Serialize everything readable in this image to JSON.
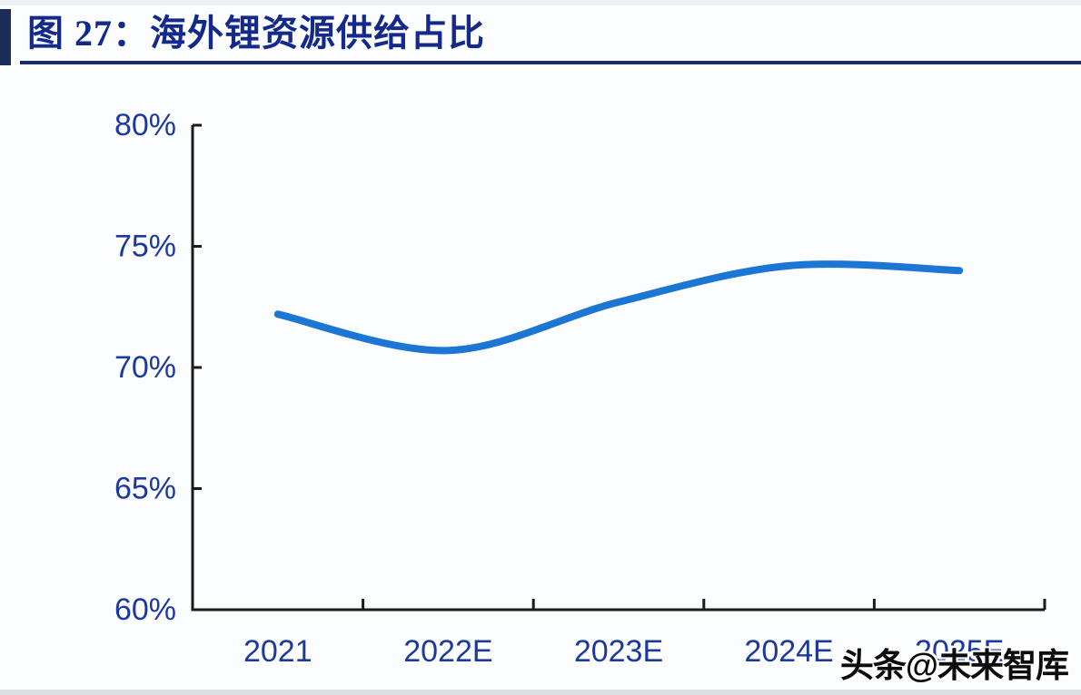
{
  "figure": {
    "title": "图 27：海外锂资源供给占比",
    "title_color": "#13298b",
    "accent_bar_color": "#1c2b57",
    "rule_color": "#17296f"
  },
  "watermark": {
    "text": "头条@未来智库"
  },
  "chart_data": {
    "type": "line",
    "title": "海外锂资源供给占比",
    "categories": [
      "2021",
      "2022E",
      "2023E",
      "2024E",
      "2025E"
    ],
    "series": [
      {
        "name": "海外锂资源供给占比",
        "values": [
          72.2,
          70.7,
          72.7,
          74.2,
          74.0
        ]
      }
    ],
    "xlabel": "",
    "ylabel": "",
    "ylim": [
      60,
      80
    ],
    "yticks": [
      "80%",
      "75%",
      "70%",
      "65%",
      "60%"
    ],
    "ytick_values": [
      80,
      75,
      70,
      65,
      60
    ],
    "grid": false,
    "legend": "none",
    "line_color": "#1b76d4",
    "line_width": 8,
    "axis_color": "#1b1b1b",
    "label_color": "#1c3a9e",
    "tick_style": "inward"
  }
}
